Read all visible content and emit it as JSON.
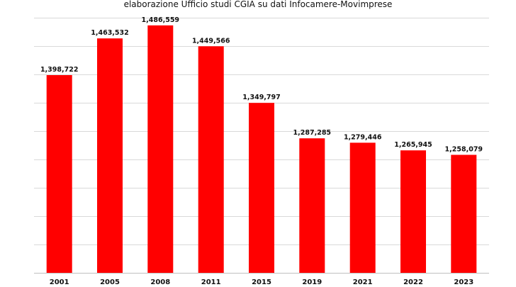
{
  "subtitle": "elaborazione Ufficio studi CGIA su dati Infocamere-Movimprese",
  "chart_data": {
    "type": "bar",
    "title": "",
    "categories": [
      "2001",
      "2005",
      "2008",
      "2011",
      "2015",
      "2019",
      "2021",
      "2022",
      "2023"
    ],
    "values": [
      1398722,
      1463532,
      1486559,
      1449566,
      1349797,
      1287285,
      1279446,
      1265945,
      1258079
    ],
    "value_labels": [
      "1,398,722",
      "1,463,532",
      "1,486,559",
      "1,449,566",
      "1,349,797",
      "1,287,285",
      "1,279,446",
      "1,265,945",
      "1,258,079"
    ],
    "xlabel": "",
    "ylabel": "",
    "ylim": [
      1050000,
      1500000
    ],
    "grid": true,
    "legend": "none",
    "bar_color": "#ff0000",
    "grid_color": "#d9d9d9"
  }
}
